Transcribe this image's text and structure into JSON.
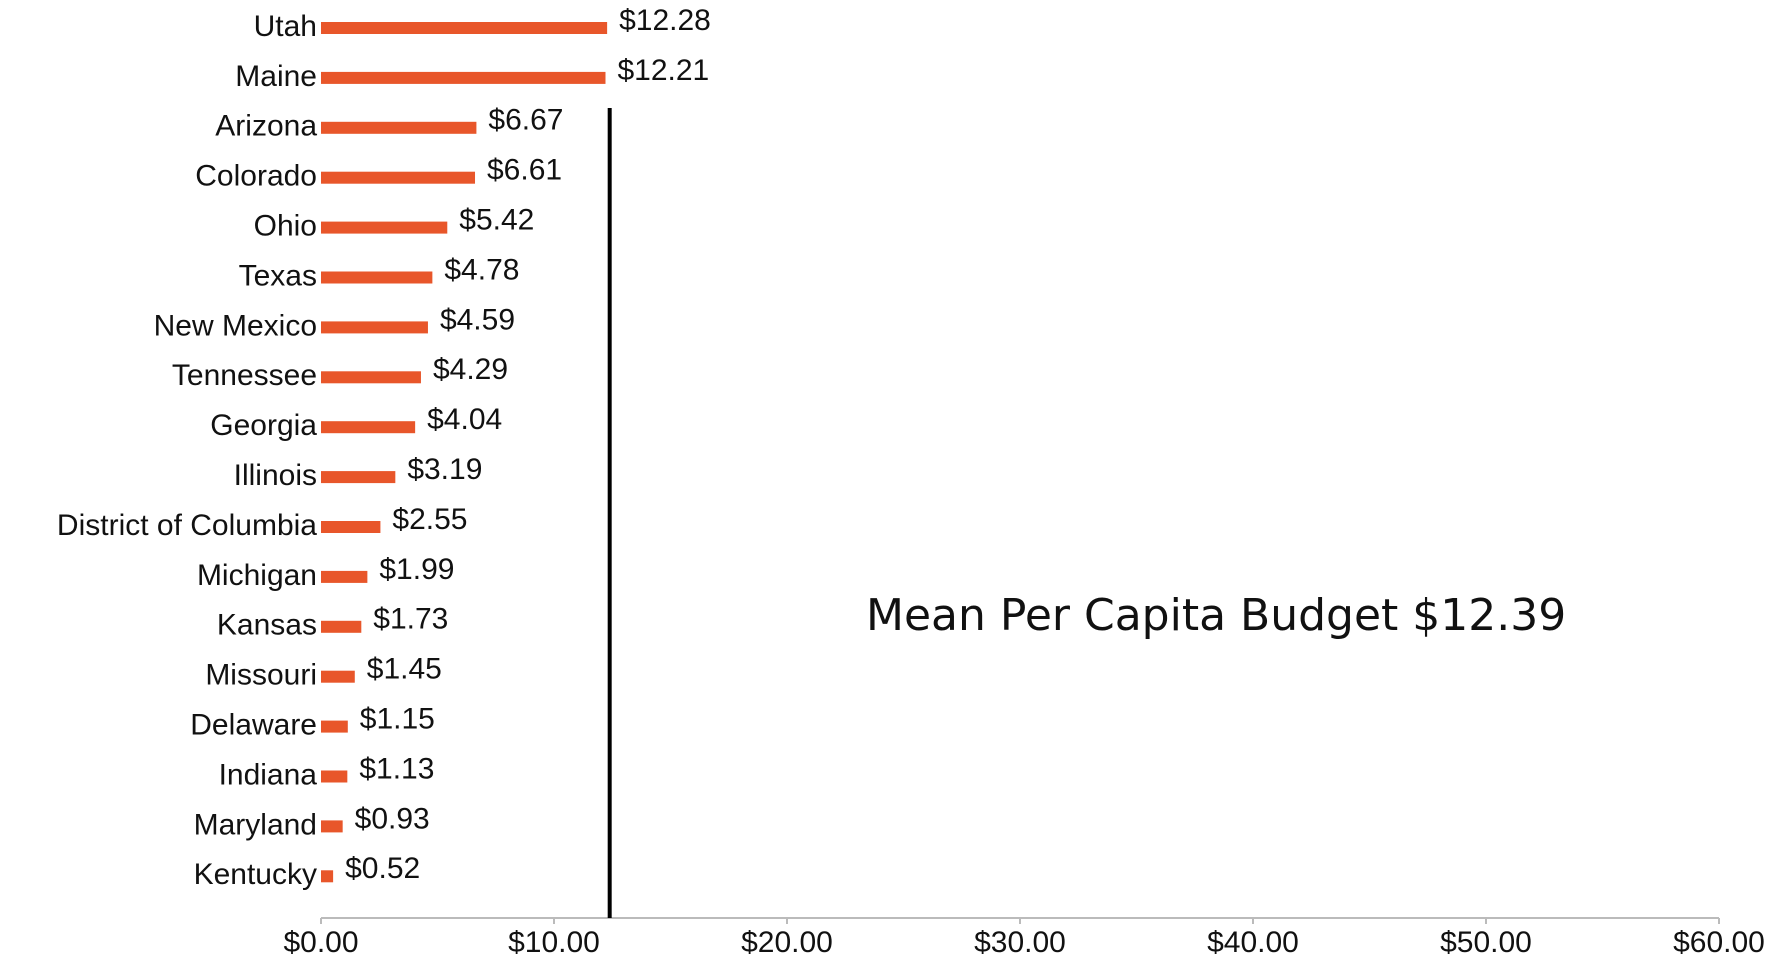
{
  "chart_data": {
    "type": "hbar",
    "categories": [
      "Utah",
      "Maine",
      "Arizona",
      "Colorado",
      "Ohio",
      "Texas",
      "New Mexico",
      "Tennessee",
      "Georgia",
      "Illinois",
      "District of Columbia",
      "Michigan",
      "Kansas",
      "Missouri",
      "Delaware",
      "Indiana",
      "Maryland",
      "Kentucky"
    ],
    "values": [
      12.28,
      12.21,
      6.67,
      6.61,
      5.42,
      4.78,
      4.59,
      4.29,
      4.04,
      3.19,
      2.55,
      1.99,
      1.73,
      1.45,
      1.15,
      1.13,
      0.93,
      0.52
    ],
    "value_labels": [
      "$12.28",
      "$12.21",
      "$6.67",
      "$6.61",
      "$5.42",
      "$4.78",
      "$4.59",
      "$4.29",
      "$4.04",
      "$3.19",
      "$2.55",
      "$1.99",
      "$1.73",
      "$1.45",
      "$1.15",
      "$1.13",
      "$0.93",
      "$0.52"
    ],
    "color": "#e8562a",
    "xlim": [
      0,
      60
    ],
    "xticks": [
      {
        "value": 0,
        "label": "$0.00"
      },
      {
        "value": 10,
        "label": "$10.00"
      },
      {
        "value": 20,
        "label": "$20.00"
      },
      {
        "value": 30,
        "label": "$30.00"
      },
      {
        "value": 40,
        "label": "$40.00"
      },
      {
        "value": 50,
        "label": "$50.00"
      },
      {
        "value": 60,
        "label": "$60.00"
      }
    ],
    "annotation": {
      "text": "Mean Per Capita Budget $12.39",
      "value": 12.39
    }
  }
}
